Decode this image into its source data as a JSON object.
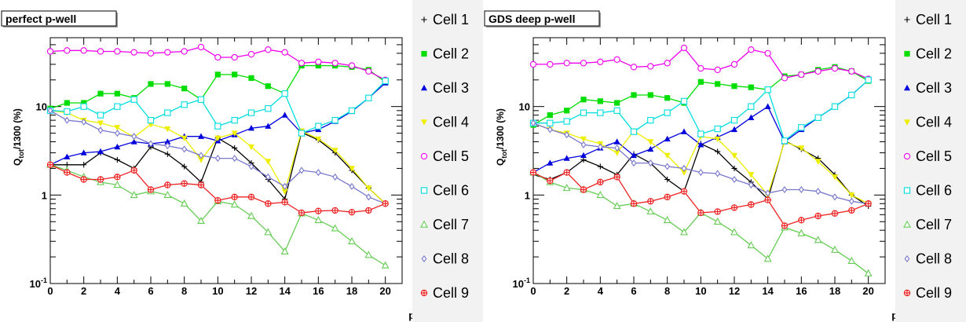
{
  "chart_data": [
    {
      "type": "line",
      "title": "perfect p-well",
      "xlabel": "point",
      "ylabel": "Q_tot/1300 (%)",
      "ylabel_main": "Q",
      "ylabel_sub": "tot",
      "ylabel_rest": "/1300 (%)",
      "xlim": [
        0,
        21
      ],
      "ylim": [
        0.1,
        60
      ],
      "yscale": "log",
      "grid": false,
      "legend_position": "right",
      "x_ticks": [
        "0",
        "2",
        "4",
        "6",
        "8",
        "10",
        "12",
        "14",
        "16",
        "18",
        "20"
      ],
      "y_ticks": [
        {
          "value": 0.1,
          "label": "10",
          "sup": "-1"
        },
        {
          "value": 1,
          "label": "1",
          "sup": ""
        },
        {
          "value": 10,
          "label": "10",
          "sup": ""
        }
      ],
      "x": [
        0,
        1,
        2,
        3,
        4,
        5,
        6,
        7,
        8,
        9,
        10,
        11,
        12,
        13,
        14,
        15,
        16,
        17,
        18,
        19,
        20
      ],
      "series": [
        {
          "name": "Cell 1",
          "values": [
            2.2,
            2.2,
            2.2,
            3.0,
            2.5,
            2.0,
            3.5,
            2.9,
            2.1,
            1.4,
            4.4,
            3.4,
            2.3,
            1.5,
            0.9,
            5.1,
            4.2,
            3.0,
            1.9,
            1.2,
            0.8
          ]
        },
        {
          "name": "Cell 2",
          "values": [
            9.5,
            11,
            11,
            14,
            14,
            12.5,
            18,
            18,
            16,
            12,
            23,
            23,
            21,
            17,
            14,
            29,
            29,
            29,
            28,
            26,
            19
          ]
        },
        {
          "name": "Cell 3",
          "values": [
            2.2,
            2.7,
            3.0,
            3.1,
            3.5,
            4.0,
            3.8,
            4.0,
            4.6,
            4.6,
            4.1,
            4.8,
            5.7,
            6.0,
            8.0,
            5.0,
            5.5,
            6.8,
            8.8,
            12.5,
            18.5
          ]
        },
        {
          "name": "Cell 4",
          "values": [
            9.0,
            8.5,
            7.0,
            6.5,
            5.8,
            4.5,
            6.3,
            5.6,
            4.4,
            2.5,
            4.4,
            5.0,
            3.5,
            2.4,
            1.1,
            5.3,
            4.3,
            3.2,
            2.0,
            1.2,
            0.8
          ]
        },
        {
          "name": "Cell 5",
          "values": [
            42,
            43,
            43,
            42,
            42,
            41,
            40,
            41,
            42,
            47,
            36,
            36,
            39,
            44,
            41,
            31,
            32,
            31,
            29,
            25,
            20
          ]
        },
        {
          "name": "Cell 6",
          "values": [
            9.0,
            8.8,
            10,
            8.0,
            10,
            12,
            7.0,
            8.5,
            10.5,
            12,
            6.0,
            7.0,
            8.5,
            9.5,
            14,
            5.0,
            6.0,
            7.0,
            9.0,
            12.5,
            19.5
          ]
        },
        {
          "name": "Cell 7",
          "values": [
            2.2,
            1.9,
            1.6,
            1.4,
            1.3,
            1.0,
            1.1,
            1.0,
            0.8,
            0.51,
            0.85,
            0.78,
            0.58,
            0.38,
            0.23,
            0.62,
            0.52,
            0.42,
            0.3,
            0.21,
            0.16
          ]
        },
        {
          "name": "Cell 8",
          "values": [
            9.0,
            7.0,
            6.7,
            5.4,
            5.0,
            4.6,
            3.8,
            3.6,
            3.3,
            2.8,
            2.6,
            2.6,
            2.1,
            1.6,
            1.25,
            1.9,
            1.8,
            1.6,
            1.25,
            0.95,
            0.8
          ]
        },
        {
          "name": "Cell 9",
          "values": [
            2.2,
            1.8,
            1.5,
            1.5,
            1.6,
            1.9,
            1.15,
            1.3,
            1.35,
            1.3,
            0.87,
            0.95,
            0.95,
            0.8,
            0.83,
            0.63,
            0.66,
            0.67,
            0.64,
            0.67,
            0.8
          ]
        }
      ]
    },
    {
      "type": "line",
      "title": "GDS deep p-well",
      "xlabel": "point",
      "ylabel": "Q_tot/1300 (%)",
      "ylabel_main": "Q",
      "ylabel_sub": "tot",
      "ylabel_rest": "/1300 (%)",
      "xlim": [
        0,
        21
      ],
      "ylim": [
        0.1,
        60
      ],
      "yscale": "log",
      "grid": false,
      "legend_position": "right",
      "x_ticks": [
        "0",
        "2",
        "4",
        "6",
        "8",
        "10",
        "12",
        "14",
        "16",
        "18",
        "20"
      ],
      "y_ticks": [
        {
          "value": 0.1,
          "label": "10",
          "sup": "-1"
        },
        {
          "value": 1,
          "label": "1",
          "sup": ""
        },
        {
          "value": 10,
          "label": "10",
          "sup": ""
        }
      ],
      "x": [
        0,
        1,
        2,
        3,
        4,
        5,
        6,
        7,
        8,
        9,
        10,
        11,
        12,
        13,
        14,
        15,
        16,
        17,
        18,
        19,
        20
      ],
      "series": [
        {
          "name": "Cell 1",
          "values": [
            1.7,
            1.5,
            1.8,
            2.5,
            2.1,
            1.7,
            2.9,
            2.3,
            1.5,
            1.1,
            3.8,
            3.1,
            2.0,
            1.4,
            0.9,
            4.1,
            3.3,
            2.6,
            1.7,
            1.0,
            0.75
          ]
        },
        {
          "name": "Cell 2",
          "values": [
            6.2,
            8.0,
            9.0,
            12,
            11.5,
            11,
            13.5,
            13.5,
            12.5,
            11,
            19,
            18,
            17,
            16.5,
            15.5,
            22,
            23,
            26,
            28,
            25,
            19.5
          ]
        },
        {
          "name": "Cell 3",
          "values": [
            1.8,
            2.3,
            2.6,
            2.8,
            3.4,
            4.0,
            2.8,
            3.3,
            4.3,
            5.2,
            3.7,
            4.5,
            5.5,
            7.5,
            10,
            4.0,
            5.5,
            7.5,
            10,
            13.5,
            20
          ]
        },
        {
          "name": "Cell 4",
          "values": [
            6.5,
            5.5,
            5.0,
            4.3,
            3.8,
            3.0,
            5.3,
            4.0,
            2.8,
            1.8,
            4.6,
            4.3,
            2.8,
            1.7,
            1.0,
            4.0,
            3.4,
            2.4,
            1.6,
            1.0,
            0.8
          ]
        },
        {
          "name": "Cell 5",
          "values": [
            30,
            30,
            31,
            31,
            32,
            34,
            28,
            28.5,
            31,
            46,
            27,
            26,
            30,
            44,
            40,
            21,
            23,
            25,
            27,
            25,
            20.5
          ]
        },
        {
          "name": "Cell 6",
          "values": [
            6.5,
            6.5,
            6.8,
            8.5,
            8.5,
            9.0,
            5.2,
            7.0,
            8.5,
            11.5,
            4.9,
            5.6,
            7.0,
            10,
            15.5,
            4.1,
            5.8,
            7.5,
            10,
            13.5,
            20
          ]
        },
        {
          "name": "Cell 7",
          "values": [
            1.8,
            1.4,
            1.2,
            1.15,
            1.0,
            0.75,
            0.8,
            0.65,
            0.52,
            0.38,
            0.63,
            0.5,
            0.38,
            0.27,
            0.19,
            0.43,
            0.37,
            0.31,
            0.24,
            0.18,
            0.13
          ]
        },
        {
          "name": "Cell 8",
          "values": [
            6.5,
            5.5,
            4.8,
            3.7,
            3.5,
            3.4,
            2.3,
            2.3,
            2.1,
            2.0,
            1.8,
            1.75,
            1.5,
            1.3,
            1.05,
            1.15,
            1.15,
            1.1,
            0.95,
            0.85,
            0.8
          ]
        },
        {
          "name": "Cell 9",
          "values": [
            1.8,
            1.45,
            1.8,
            1.15,
            1.4,
            1.6,
            0.8,
            0.85,
            0.95,
            1.1,
            0.63,
            0.65,
            0.72,
            0.78,
            0.88,
            0.45,
            0.52,
            0.58,
            0.62,
            0.67,
            0.8
          ]
        }
      ]
    }
  ],
  "styles": [
    {
      "color": "#000000",
      "marker": "plus"
    },
    {
      "color": "#00dd00",
      "marker": "square"
    },
    {
      "color": "#0000dd",
      "marker": "triangle"
    },
    {
      "color": "#eeee00",
      "marker": "triangle-down"
    },
    {
      "color": "#ee00ee",
      "marker": "circle-open"
    },
    {
      "color": "#00dddd",
      "marker": "square-open"
    },
    {
      "color": "#66cc55",
      "marker": "triangle-open"
    },
    {
      "color": "#7777cc",
      "marker": "diamond-open"
    },
    {
      "color": "#ee2222",
      "marker": "circle-cross"
    }
  ]
}
